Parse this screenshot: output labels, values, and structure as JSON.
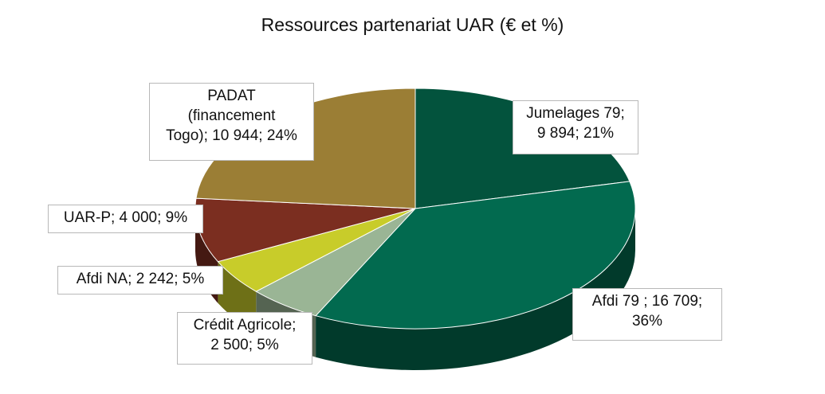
{
  "chart_data": {
    "type": "pie",
    "title": "Ressources partenariat UAR (€ et %)",
    "unit": "€",
    "slices": [
      {
        "name": "Jumelages 79",
        "value": 9894,
        "percent": 21,
        "color": "#03533d",
        "label": "Jumelages 79;\n9 894; 21%"
      },
      {
        "name": "Afdi 79",
        "value": 16709,
        "percent": 36,
        "color": "#026a4f",
        "label": "Afdi 79  ; 16 709;\n36%"
      },
      {
        "name": "Crédit Agricole",
        "value": 2500,
        "percent": 5,
        "color": "#9ab595",
        "label": "Crédit Agricole;\n2 500; 5%"
      },
      {
        "name": "Afdi NA",
        "value": 2242,
        "percent": 5,
        "color": "#c8cc2a",
        "label": "Afdi NA; 2 242; 5%"
      },
      {
        "name": "UAR-P",
        "value": 4000,
        "percent": 9,
        "color": "#7b2e20",
        "label": "UAR-P; 4 000; 9%"
      },
      {
        "name": "PADAT (financement Togo)",
        "value": 10944,
        "percent": 24,
        "color": "#9b7e35",
        "label": "PADAT\n(financement\nTogo); 10 944; 24%"
      }
    ]
  }
}
